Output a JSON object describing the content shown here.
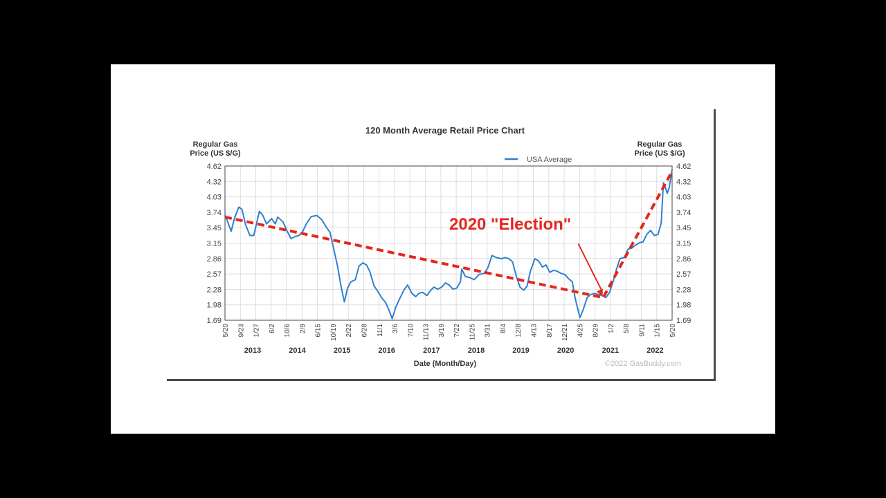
{
  "chart_data": {
    "type": "line",
    "title": "120 Month Average Retail Price Chart",
    "ylabel_left": [
      "Regular Gas",
      "Price (US $/G)"
    ],
    "ylabel_right": [
      "Regular Gas",
      "Price (US $/G)"
    ],
    "xlabel": "Date (Month/Day)",
    "ylim": [
      1.69,
      4.62
    ],
    "y_ticks": [
      "4.62",
      "4.32",
      "4.03",
      "3.74",
      "3.45",
      "3.15",
      "2.86",
      "2.57",
      "2.28",
      "1.98",
      "1.69"
    ],
    "x_date_range": [
      "2012-05-20",
      "2022-05-20"
    ],
    "x_tick_labels": [
      "5/20",
      "9/23",
      "1/27",
      "6/2",
      "10/6",
      "2/9",
      "6/15",
      "10/19",
      "2/22",
      "6/28",
      "11/1",
      "3/6",
      "7/10",
      "11/13",
      "3/19",
      "7/22",
      "11/25",
      "3/31",
      "8/4",
      "12/8",
      "4/13",
      "8/17",
      "12/21",
      "4/25",
      "8/29",
      "1/2",
      "5/8",
      "9/11",
      "1/15",
      "5/20"
    ],
    "year_labels": [
      "2013",
      "2014",
      "2015",
      "2016",
      "2017",
      "2018",
      "2019",
      "2020",
      "2021",
      "2022"
    ],
    "legend": "USA Average",
    "legend_position": "top-right",
    "grid": true,
    "credit": "©2022 GasBuddy.com",
    "series": [
      {
        "name": "USA Average",
        "color": "#2f7fd0",
        "points": [
          [
            "2012-05-20",
            3.7
          ],
          [
            "2012-06-20",
            3.5
          ],
          [
            "2012-07-10",
            3.38
          ],
          [
            "2012-08-05",
            3.62
          ],
          [
            "2012-09-10",
            3.84
          ],
          [
            "2012-10-05",
            3.8
          ],
          [
            "2012-11-05",
            3.5
          ],
          [
            "2012-12-10",
            3.3
          ],
          [
            "2013-01-10",
            3.3
          ],
          [
            "2013-02-25",
            3.76
          ],
          [
            "2013-03-25",
            3.68
          ],
          [
            "2013-04-25",
            3.52
          ],
          [
            "2013-06-05",
            3.62
          ],
          [
            "2013-07-05",
            3.52
          ],
          [
            "2013-07-25",
            3.65
          ],
          [
            "2013-09-05",
            3.56
          ],
          [
            "2013-10-15",
            3.36
          ],
          [
            "2013-11-10",
            3.24
          ],
          [
            "2013-12-15",
            3.28
          ],
          [
            "2014-01-15",
            3.3
          ],
          [
            "2014-02-15",
            3.38
          ],
          [
            "2014-03-15",
            3.52
          ],
          [
            "2014-04-25",
            3.66
          ],
          [
            "2014-06-10",
            3.68
          ],
          [
            "2014-07-20",
            3.6
          ],
          [
            "2014-08-25",
            3.46
          ],
          [
            "2014-09-25",
            3.36
          ],
          [
            "2014-10-20",
            3.1
          ],
          [
            "2014-11-25",
            2.72
          ],
          [
            "2014-12-25",
            2.32
          ],
          [
            "2015-01-20",
            2.04
          ],
          [
            "2015-02-15",
            2.3
          ],
          [
            "2015-03-15",
            2.42
          ],
          [
            "2015-04-20",
            2.46
          ],
          [
            "2015-05-20",
            2.72
          ],
          [
            "2015-06-20",
            2.78
          ],
          [
            "2015-07-20",
            2.74
          ],
          [
            "2015-08-15",
            2.62
          ],
          [
            "2015-09-20",
            2.34
          ],
          [
            "2015-10-20",
            2.24
          ],
          [
            "2015-11-20",
            2.12
          ],
          [
            "2015-12-25",
            2.02
          ],
          [
            "2016-01-20",
            1.88
          ],
          [
            "2016-02-15",
            1.72
          ],
          [
            "2016-03-15",
            1.94
          ],
          [
            "2016-04-20",
            2.12
          ],
          [
            "2016-05-25",
            2.28
          ],
          [
            "2016-06-20",
            2.36
          ],
          [
            "2016-07-25",
            2.2
          ],
          [
            "2016-08-25",
            2.14
          ],
          [
            "2016-09-20",
            2.2
          ],
          [
            "2016-10-20",
            2.22
          ],
          [
            "2016-11-25",
            2.16
          ],
          [
            "2016-12-25",
            2.26
          ],
          [
            "2017-01-20",
            2.32
          ],
          [
            "2017-02-20",
            2.28
          ],
          [
            "2017-03-25",
            2.32
          ],
          [
            "2017-04-25",
            2.4
          ],
          [
            "2017-05-25",
            2.36
          ],
          [
            "2017-06-25",
            2.28
          ],
          [
            "2017-07-25",
            2.3
          ],
          [
            "2017-08-25",
            2.42
          ],
          [
            "2017-09-05",
            2.66
          ],
          [
            "2017-10-05",
            2.52
          ],
          [
            "2017-11-10",
            2.5
          ],
          [
            "2017-12-15",
            2.46
          ],
          [
            "2018-01-25",
            2.56
          ],
          [
            "2018-03-05",
            2.58
          ],
          [
            "2018-04-05",
            2.68
          ],
          [
            "2018-05-10",
            2.92
          ],
          [
            "2018-06-15",
            2.88
          ],
          [
            "2018-07-25",
            2.86
          ],
          [
            "2018-08-25",
            2.88
          ],
          [
            "2018-09-25",
            2.86
          ],
          [
            "2018-10-25",
            2.8
          ],
          [
            "2018-11-25",
            2.52
          ],
          [
            "2018-12-25",
            2.32
          ],
          [
            "2019-01-25",
            2.26
          ],
          [
            "2019-02-20",
            2.34
          ],
          [
            "2019-03-20",
            2.62
          ],
          [
            "2019-04-25",
            2.86
          ],
          [
            "2019-05-25",
            2.82
          ],
          [
            "2019-06-25",
            2.7
          ],
          [
            "2019-07-25",
            2.74
          ],
          [
            "2019-08-25",
            2.6
          ],
          [
            "2019-09-25",
            2.64
          ],
          [
            "2019-10-25",
            2.62
          ],
          [
            "2019-11-25",
            2.58
          ],
          [
            "2019-12-25",
            2.56
          ],
          [
            "2020-01-25",
            2.48
          ],
          [
            "2020-02-25",
            2.42
          ],
          [
            "2020-03-20",
            2.1
          ],
          [
            "2020-04-10",
            1.9
          ],
          [
            "2020-04-28",
            1.74
          ],
          [
            "2020-05-25",
            1.9
          ],
          [
            "2020-06-25",
            2.12
          ],
          [
            "2020-07-25",
            2.18
          ],
          [
            "2020-08-25",
            2.2
          ],
          [
            "2020-09-25",
            2.18
          ],
          [
            "2020-10-25",
            2.16
          ],
          [
            "2020-11-25",
            2.12
          ],
          [
            "2020-12-25",
            2.22
          ],
          [
            "2021-01-25",
            2.44
          ],
          [
            "2021-02-20",
            2.66
          ],
          [
            "2021-03-20",
            2.86
          ],
          [
            "2021-04-25",
            2.88
          ],
          [
            "2021-05-25",
            3.04
          ],
          [
            "2021-06-25",
            3.06
          ],
          [
            "2021-07-25",
            3.12
          ],
          [
            "2021-08-25",
            3.16
          ],
          [
            "2021-09-25",
            3.18
          ],
          [
            "2021-10-25",
            3.32
          ],
          [
            "2021-11-25",
            3.4
          ],
          [
            "2021-12-25",
            3.3
          ],
          [
            "2022-01-25",
            3.32
          ],
          [
            "2022-02-20",
            3.54
          ],
          [
            "2022-03-10",
            4.3
          ],
          [
            "2022-03-25",
            4.22
          ],
          [
            "2022-04-10",
            4.1
          ],
          [
            "2022-04-25",
            4.2
          ],
          [
            "2022-05-10",
            4.4
          ],
          [
            "2022-05-20",
            4.56
          ]
        ]
      }
    ],
    "annotation": {
      "text": "2020 \"Election\"",
      "color": "#e4271e",
      "trend_points": [
        [
          "2012-05-20",
          3.65
        ],
        [
          "2020-11-03",
          2.12
        ],
        [
          "2022-05-20",
          4.52
        ]
      ]
    }
  }
}
